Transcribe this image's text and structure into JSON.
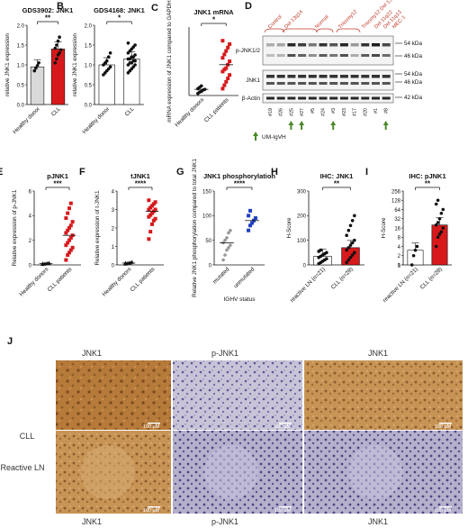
{
  "panels": {
    "A": {
      "letter": "A",
      "title": "GDS3902: JNK1",
      "ylabel": "relative JNK1 expression",
      "sig": "**",
      "yticks": [
        "0.0",
        "0.5",
        "1.0",
        "1.5",
        "2.0"
      ],
      "groups": [
        "Healthy donor",
        "CLL"
      ]
    },
    "B": {
      "letter": "B",
      "title": "GDS4168: JNK1",
      "ylabel": "relative JNK1 expression",
      "sig": "*",
      "yticks": [
        "0.0",
        "0.5",
        "1.0",
        "1.5",
        "2.0"
      ],
      "groups": [
        "Healthy donor",
        "CLL"
      ]
    },
    "C": {
      "letter": "C",
      "title": "JNK1 mRNA",
      "ylabel": "mRNA expression of JNK1 compared to GAPDH",
      "sig": "*",
      "groups": [
        "Healthy donors",
        "CLL patients"
      ]
    },
    "D": {
      "letter": "D",
      "groups_top": [
        "Control",
        "Del 13q14",
        "Normal",
        "Trisomy12",
        "Trisomy12 Del 13q14",
        "Del 11q22",
        "Del 11q13",
        "MEC-1"
      ],
      "row_labels": [
        "p-JNK1/2",
        "JNK1",
        "β-Actin"
      ],
      "kda": [
        "54 kDa",
        "46 kDa",
        "54 kDa",
        "46 kDa",
        "42 kDa"
      ],
      "samples": [
        "#19",
        "#26",
        "#25",
        "#27",
        "#5",
        "#24",
        "#3",
        "#23",
        "#17",
        "#20",
        "#1",
        "#8"
      ],
      "legend": "UM-IgVH"
    },
    "E": {
      "letter": "E",
      "title": "pJNK1",
      "ylabel": "Relative expression of p-JNK1",
      "sig": "***",
      "yticks": [
        "0",
        "2",
        "4",
        "6"
      ],
      "groups": [
        "Healthy donors",
        "CLL patients"
      ]
    },
    "F": {
      "letter": "F",
      "title": "tJNK1",
      "ylabel": "Relative expression of t-JNK1",
      "sig": "****",
      "yticks": [
        "0",
        "1",
        "2",
        "3",
        "4"
      ],
      "groups": [
        "Healthy donors",
        "CLL patients"
      ]
    },
    "G": {
      "letter": "G",
      "title": "JNK1 phosphorylation",
      "ylabel": "Relative JNK1 phosphorylation compared to total JNK1",
      "sig": "****",
      "yticks": [
        "0",
        "50",
        "100",
        "150"
      ],
      "groups": [
        "mutated",
        "unmutated"
      ],
      "xlabel": "IGHV status"
    },
    "H": {
      "letter": "H",
      "title": "IHC: JNK1",
      "ylabel": "H-Score",
      "sig": "**",
      "yticks": [
        "0",
        "100",
        "200",
        "300"
      ],
      "groups": [
        "reactive LN (n=21)",
        "CLL (n=28)"
      ]
    },
    "I": {
      "letter": "I",
      "title": "IHC: pJNK1",
      "ylabel": "H-Score",
      "sig": "**",
      "yticks": [
        "0",
        "1",
        "2",
        "4",
        "8",
        "16",
        "32",
        "64",
        "128",
        "256"
      ],
      "groups": [
        "reactive LN (n=21)",
        "CLL (n=28)"
      ]
    },
    "J": {
      "letter": "J",
      "col_top": [
        "JNK1",
        "p-JNK1",
        "JNK1"
      ],
      "col_bottom": [
        "JNK1",
        "p-JNK1",
        "JNK1"
      ],
      "rows": [
        "CLL",
        "Reactive LN"
      ],
      "scale": "100 µM"
    }
  },
  "chart_data": [
    {
      "panel": "A",
      "type": "bar",
      "categories": [
        "Healthy donor",
        "CLL"
      ],
      "values": [
        0.95,
        1.4
      ],
      "ylim": [
        0,
        2
      ],
      "points": [
        [
          0.85,
          0.92,
          0.98,
          1.05
        ],
        [
          1.05,
          1.15,
          1.25,
          1.3,
          1.38,
          1.42,
          1.5,
          1.6,
          1.7
        ]
      ]
    },
    {
      "panel": "B",
      "type": "bar",
      "categories": [
        "Healthy donor",
        "CLL"
      ],
      "values": [
        1.0,
        1.15
      ],
      "ylim": [
        0,
        2
      ],
      "points": [
        [
          0.75,
          0.8,
          0.85,
          0.9,
          0.95,
          1.0,
          1.05,
          1.1,
          1.2,
          1.3
        ],
        [
          0.8,
          0.85,
          0.9,
          0.95,
          1.0,
          1.0,
          1.05,
          1.05,
          1.1,
          1.1,
          1.15,
          1.15,
          1.2,
          1.2,
          1.25,
          1.3,
          1.35,
          1.4,
          1.45,
          1.5,
          1.55
        ]
      ]
    },
    {
      "panel": "C",
      "type": "scatter",
      "categories": [
        "Healthy donors",
        "CLL patients"
      ],
      "ylim": [
        0,
        10
      ],
      "points": [
        [
          0.3,
          0.5,
          0.6,
          0.8,
          0.9,
          1.0,
          1.2,
          1.4
        ],
        [
          1,
          1.5,
          2,
          2.5,
          3,
          3.5,
          3.8,
          4,
          4.5,
          5,
          5.5,
          6,
          6.5,
          7,
          7.5,
          8
        ]
      ]
    },
    {
      "panel": "E",
      "type": "scatter",
      "categories": [
        "Healthy donors",
        "CLL patients"
      ],
      "ylim": [
        0,
        6
      ],
      "points": [
        [
          0.05,
          0.08,
          0.1,
          0.12,
          0.15,
          0.1
        ],
        [
          0.4,
          0.8,
          1.0,
          1.2,
          1.4,
          1.6,
          1.8,
          2.0,
          2.2,
          2.4,
          2.6,
          2.8,
          3.0,
          3.2,
          3.5,
          3.8,
          4.2,
          4.6,
          5.0
        ]
      ]
    },
    {
      "panel": "F",
      "type": "scatter",
      "categories": [
        "Healthy donors",
        "CLL patients"
      ],
      "ylim": [
        0,
        4
      ],
      "points": [
        [
          0.05,
          0.08,
          0.1,
          0.12,
          0.15,
          0.1
        ],
        [
          1.4,
          1.8,
          2.2,
          2.4,
          2.5,
          2.6,
          2.7,
          2.8,
          2.9,
          3.0,
          3.0,
          3.1,
          3.2,
          3.3,
          3.4,
          3.5
        ]
      ]
    },
    {
      "panel": "G",
      "type": "scatter",
      "categories": [
        "mutated",
        "unmutated"
      ],
      "ylim": [
        0,
        150
      ],
      "points": [
        [
          10,
          20,
          30,
          35,
          40,
          45,
          50,
          55,
          65,
          70
        ],
        [
          70,
          80,
          85,
          90,
          95,
          100,
          110
        ]
      ]
    },
    {
      "panel": "H",
      "type": "bar",
      "categories": [
        "reactive LN (n=21)",
        "CLL (n=28)"
      ],
      "values": [
        35,
        70
      ],
      "ylim": [
        0,
        300
      ],
      "points": [
        [
          5,
          10,
          15,
          20,
          25,
          30,
          35,
          40,
          45,
          50,
          55,
          60
        ],
        [
          10,
          20,
          30,
          40,
          50,
          60,
          70,
          80,
          90,
          100,
          120,
          140,
          160,
          180,
          200
        ]
      ]
    },
    {
      "panel": "I",
      "type": "bar",
      "categories": [
        "reactive LN (n=21)",
        "CLL (n=28)"
      ],
      "values": [
        3,
        20
      ],
      "ylim": [
        0,
        256
      ],
      "points": [
        [
          1,
          2,
          3,
          4
        ],
        [
          4,
          8,
          10,
          12,
          16,
          20,
          24,
          32,
          48,
          64,
          96,
          128
        ]
      ]
    }
  ]
}
